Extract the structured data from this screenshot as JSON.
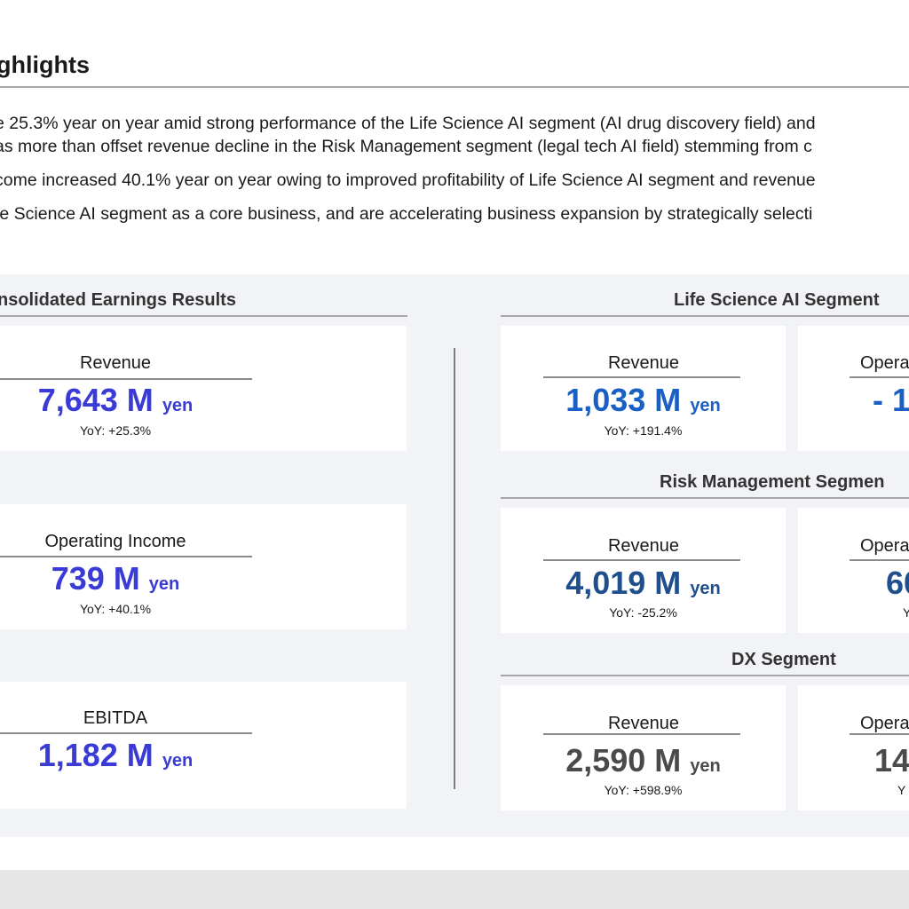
{
  "header": {
    "title": "ghlights",
    "bullets": [
      "e 25.3% year on year amid strong performance of the Life Science AI segment (AI drug discovery field) and",
      "as more than offset revenue decline in the Risk Management segment (legal tech AI field) stemming from c",
      "come increased 40.1% year on year owing to improved profitability of Life Science AI segment and revenue",
      "fe Science AI segment as a core business, and are accelerating business expansion by strategically selecti"
    ]
  },
  "consolidated": {
    "title": "nsolidated Earnings Results",
    "revenue": {
      "label": "Revenue",
      "value": "7,643 M",
      "unit": "yen",
      "yoy": "YoY:  +25.3%"
    },
    "operating_income": {
      "label": "Operating Income",
      "value": "739 M",
      "unit": "yen",
      "yoy": "YoY: +40.1%"
    },
    "ebitda": {
      "label": "EBITDA",
      "value": "1,182 M",
      "unit": "yen"
    }
  },
  "life_science": {
    "title": "Life Science AI Segment",
    "revenue": {
      "label": "Revenue",
      "value": "1,033 M",
      "unit": "yen",
      "yoy": "YoY:  +191.4%"
    },
    "operating": {
      "label": "Opera",
      "value": "- 1"
    }
  },
  "risk_management": {
    "title": "Risk Management Segmen",
    "revenue": {
      "label": "Revenue",
      "value": "4,019 M",
      "unit": "yen",
      "yoy": "YoY: -25.2%"
    },
    "operating": {
      "label": "Opera",
      "value": "60",
      "yoy": "Y"
    }
  },
  "dx": {
    "title": "DX Segment",
    "revenue": {
      "label": "Revenue",
      "value": "2,590 M",
      "unit": "yen",
      "yoy": "YoY:  +598.9%"
    },
    "operating": {
      "label": "Opera",
      "value": "14",
      "yoy": "Y"
    }
  },
  "colors": {
    "consolidated_value": "#3a3ad6",
    "life_science_value": "#1a5fc4",
    "risk_value": "#1f4f8c",
    "dx_value": "#4a4a4a",
    "panel_bg": "#f2f3f6"
  }
}
